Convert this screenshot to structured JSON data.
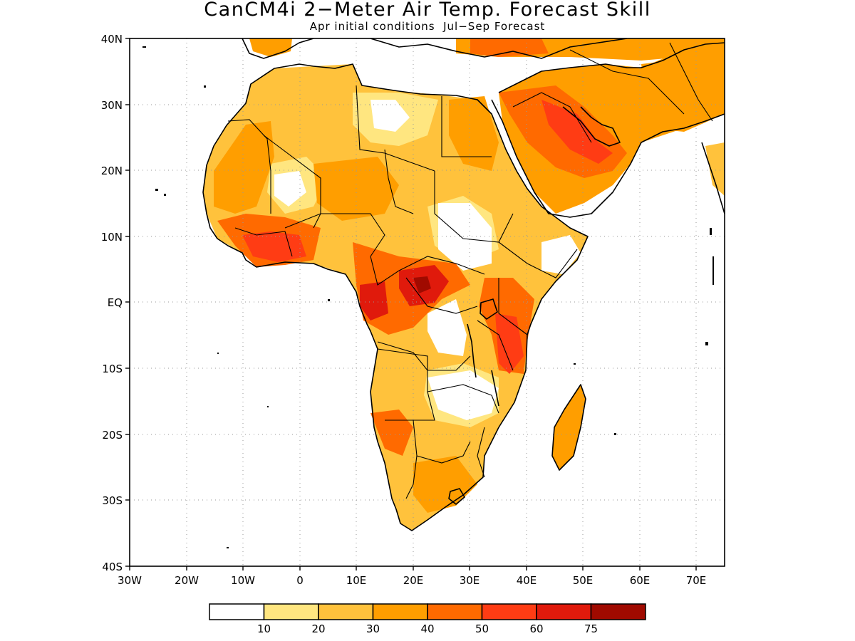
{
  "title": "CanCM4i 2−Meter Air Temp. Forecast Skill",
  "subtitle": "Apr initial conditions  Jul−Sep Forecast",
  "map": {
    "projection": "lat-lon",
    "lon_range": [
      -30,
      75
    ],
    "lat_range": [
      -40,
      40
    ],
    "lat_tick_labels": [
      "40N",
      "30N",
      "20N",
      "10N",
      "EQ",
      "10S",
      "20S",
      "30S",
      "40S"
    ],
    "lon_tick_labels": [
      "30W",
      "20W",
      "10W",
      "0",
      "10E",
      "20E",
      "30E",
      "40E",
      "50E",
      "60E",
      "70E"
    ],
    "grid": "dotted"
  },
  "colorbar": {
    "labels": [
      "10",
      "20",
      "30",
      "40",
      "50",
      "60",
      "75"
    ],
    "colors": [
      "#ffffff",
      "#ffe680",
      "#ffc23c",
      "#ff9e00",
      "#ff6a00",
      "#ff3c14",
      "#e01a0c",
      "#a00a00"
    ]
  }
}
